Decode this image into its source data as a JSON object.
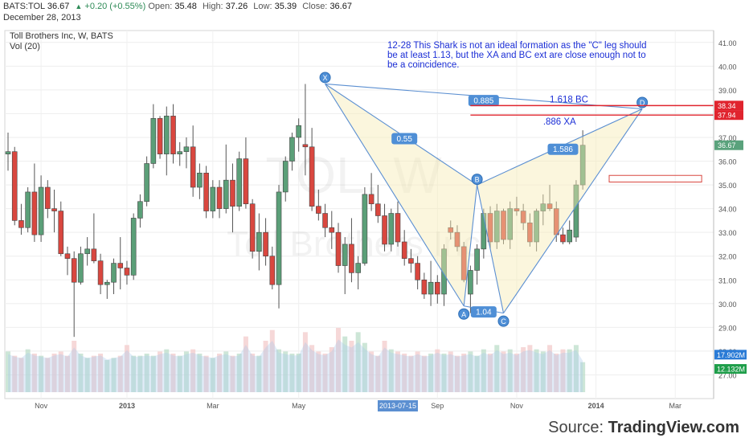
{
  "header": {
    "symbol": "BATS:TOL",
    "last": "36.67",
    "change": "+0.20 (+0.55%)",
    "open_label": "Open:",
    "open": "35.48",
    "high_label": "High:",
    "high": "37.26",
    "low_label": "Low:",
    "low": "35.39",
    "close_label": "Close:",
    "close": "36.67",
    "date": "December 28, 2013"
  },
  "chart_data": {
    "type": "candlestick",
    "title": "Toll Brothers Inc, W, BATS",
    "volume_label": "Vol (20)",
    "watermark_symbol": "TOL, W",
    "watermark_name": "Toll Brothers Inc",
    "annotation": "12-28 This Shark is not an ideal formation as the \"C\" leg should be at least 1.13, but the XA and BC ext are close enough not to be a coincidence.",
    "ylim": [
      26.0,
      41.5
    ],
    "y_ticks": [
      27.0,
      28.0,
      29.0,
      30.0,
      31.0,
      32.0,
      33.0,
      34.0,
      35.0,
      36.0,
      37.0,
      38.0,
      39.0,
      40.0,
      41.0
    ],
    "x_tick_labels": [
      "Nov",
      "2013",
      "Mar",
      "May",
      "Sep",
      "Nov",
      "2014",
      "Mar"
    ],
    "x_tick_weeks": [
      5,
      18,
      31,
      44,
      65,
      77,
      89,
      101
    ],
    "highlight_date": "2013-07-15",
    "highlight_week": 59,
    "price_labels": [
      {
        "text": "38.34",
        "value": 38.34,
        "color": "#e0242e"
      },
      {
        "text": "37.94",
        "value": 37.94,
        "color": "#e0242e"
      },
      {
        "text": "36.67",
        "value": 36.67,
        "color": "#5aa27c"
      }
    ],
    "volume_labels": [
      {
        "text": "17.902M",
        "value": 17.902,
        "color": "#2a7bd6"
      },
      {
        "text": "12.132M",
        "value": 12.132,
        "color": "#1e9e4a"
      }
    ],
    "horizontal_lines": [
      {
        "value": 38.34,
        "label": "1.618 BC",
        "color": "#e0242e"
      },
      {
        "value": 37.94,
        "label": ".886 XA",
        "color": "#e0242e"
      }
    ],
    "box": {
      "start_week": 91,
      "end_week": 105,
      "top": 35.4,
      "bottom": 35.12
    },
    "pattern": {
      "points": [
        {
          "label": "X",
          "week": 48,
          "price": 39.25
        },
        {
          "label": "A",
          "week": 69,
          "price": 29.9
        },
        {
          "label": "B",
          "week": 71,
          "price": 35.0
        },
        {
          "label": "C",
          "week": 75,
          "price": 29.6
        },
        {
          "label": "D",
          "week": 96,
          "price": 38.2
        }
      ],
      "ratio_labels": [
        {
          "text": "0.885",
          "week": 72,
          "price": 38.55
        },
        {
          "text": "0.55",
          "week": 60,
          "price": 36.95
        },
        {
          "text": "1.04",
          "week": 72,
          "price": 29.65
        },
        {
          "text": "1.586",
          "week": 84,
          "price": 36.5
        }
      ]
    },
    "candles": [
      {
        "o": 36.3,
        "h": 37.2,
        "l": 35.6,
        "c": 36.4
      },
      {
        "o": 36.4,
        "h": 36.6,
        "l": 33.3,
        "c": 33.5
      },
      {
        "o": 33.5,
        "h": 34.2,
        "l": 32.9,
        "c": 33.2
      },
      {
        "o": 33.2,
        "h": 34.9,
        "l": 33.0,
        "c": 34.7
      },
      {
        "o": 34.7,
        "h": 35.9,
        "l": 32.6,
        "c": 32.9
      },
      {
        "o": 32.9,
        "h": 35.4,
        "l": 32.6,
        "c": 34.9
      },
      {
        "o": 34.9,
        "h": 35.2,
        "l": 33.6,
        "c": 34.0
      },
      {
        "o": 34.0,
        "h": 34.8,
        "l": 33.0,
        "c": 33.9
      },
      {
        "o": 33.9,
        "h": 34.3,
        "l": 32.0,
        "c": 32.1
      },
      {
        "o": 32.1,
        "h": 32.4,
        "l": 31.2,
        "c": 31.9
      },
      {
        "o": 31.9,
        "h": 32.2,
        "l": 28.6,
        "c": 30.9
      },
      {
        "o": 30.9,
        "h": 32.4,
        "l": 30.8,
        "c": 32.1
      },
      {
        "o": 32.1,
        "h": 32.8,
        "l": 31.6,
        "c": 32.3
      },
      {
        "o": 32.3,
        "h": 33.8,
        "l": 31.7,
        "c": 31.8
      },
      {
        "o": 31.8,
        "h": 32.1,
        "l": 30.4,
        "c": 30.8
      },
      {
        "o": 30.8,
        "h": 31.0,
        "l": 30.2,
        "c": 30.9
      },
      {
        "o": 30.9,
        "h": 31.9,
        "l": 30.4,
        "c": 31.7
      },
      {
        "o": 31.7,
        "h": 32.8,
        "l": 30.6,
        "c": 31.5
      },
      {
        "o": 31.5,
        "h": 31.8,
        "l": 30.8,
        "c": 31.2
      },
      {
        "o": 31.2,
        "h": 33.8,
        "l": 31.0,
        "c": 33.6
      },
      {
        "o": 33.6,
        "h": 34.6,
        "l": 33.2,
        "c": 34.3
      },
      {
        "o": 34.3,
        "h": 36.2,
        "l": 34.1,
        "c": 35.9
      },
      {
        "o": 35.9,
        "h": 38.4,
        "l": 35.7,
        "c": 37.8
      },
      {
        "o": 37.8,
        "h": 37.9,
        "l": 36.1,
        "c": 36.3
      },
      {
        "o": 36.3,
        "h": 38.3,
        "l": 35.4,
        "c": 37.9
      },
      {
        "o": 37.9,
        "h": 38.4,
        "l": 35.9,
        "c": 36.3
      },
      {
        "o": 36.3,
        "h": 36.8,
        "l": 35.8,
        "c": 36.4
      },
      {
        "o": 36.4,
        "h": 37.0,
        "l": 35.7,
        "c": 36.6
      },
      {
        "o": 36.6,
        "h": 37.5,
        "l": 34.5,
        "c": 34.9
      },
      {
        "o": 34.9,
        "h": 35.9,
        "l": 34.4,
        "c": 35.5
      },
      {
        "o": 35.5,
        "h": 35.8,
        "l": 33.6,
        "c": 33.9
      },
      {
        "o": 33.9,
        "h": 35.2,
        "l": 33.6,
        "c": 34.9
      },
      {
        "o": 34.9,
        "h": 35.2,
        "l": 33.6,
        "c": 34.0
      },
      {
        "o": 34.0,
        "h": 36.7,
        "l": 33.8,
        "c": 35.2
      },
      {
        "o": 35.2,
        "h": 35.9,
        "l": 33.0,
        "c": 34.1
      },
      {
        "o": 34.1,
        "h": 36.4,
        "l": 33.9,
        "c": 36.1
      },
      {
        "o": 36.1,
        "h": 37.0,
        "l": 34.0,
        "c": 34.2
      },
      {
        "o": 34.2,
        "h": 34.4,
        "l": 31.9,
        "c": 32.2
      },
      {
        "o": 32.2,
        "h": 33.8,
        "l": 31.4,
        "c": 33.0
      },
      {
        "o": 33.0,
        "h": 33.6,
        "l": 31.6,
        "c": 32.0
      },
      {
        "o": 32.0,
        "h": 32.4,
        "l": 30.6,
        "c": 30.8
      },
      {
        "o": 30.8,
        "h": 35.0,
        "l": 29.8,
        "c": 34.7
      },
      {
        "o": 34.7,
        "h": 36.2,
        "l": 34.3,
        "c": 36.0
      },
      {
        "o": 36.0,
        "h": 37.2,
        "l": 35.6,
        "c": 37.0
      },
      {
        "o": 37.0,
        "h": 37.8,
        "l": 36.4,
        "c": 37.5
      },
      {
        "o": 36.7,
        "h": 39.25,
        "l": 35.4,
        "c": 36.6
      },
      {
        "o": 36.6,
        "h": 37.4,
        "l": 33.9,
        "c": 34.1
      },
      {
        "o": 34.1,
        "h": 34.8,
        "l": 33.5,
        "c": 33.8
      },
      {
        "o": 33.8,
        "h": 34.2,
        "l": 32.8,
        "c": 33.2
      },
      {
        "o": 33.2,
        "h": 33.9,
        "l": 32.3,
        "c": 33.0
      },
      {
        "o": 33.0,
        "h": 33.4,
        "l": 31.3,
        "c": 31.6
      },
      {
        "o": 31.6,
        "h": 32.8,
        "l": 30.4,
        "c": 32.5
      },
      {
        "o": 32.5,
        "h": 33.6,
        "l": 30.9,
        "c": 31.3
      },
      {
        "o": 31.3,
        "h": 32.0,
        "l": 30.6,
        "c": 31.7
      },
      {
        "o": 31.7,
        "h": 34.9,
        "l": 31.6,
        "c": 34.6
      },
      {
        "o": 34.6,
        "h": 35.5,
        "l": 33.9,
        "c": 34.2
      },
      {
        "o": 34.2,
        "h": 35.0,
        "l": 33.4,
        "c": 33.7
      },
      {
        "o": 33.7,
        "h": 34.2,
        "l": 32.2,
        "c": 32.5
      },
      {
        "o": 32.5,
        "h": 34.0,
        "l": 32.2,
        "c": 33.8
      },
      {
        "o": 33.8,
        "h": 34.3,
        "l": 32.4,
        "c": 32.6
      },
      {
        "o": 32.6,
        "h": 33.1,
        "l": 31.6,
        "c": 31.9
      },
      {
        "o": 31.9,
        "h": 32.3,
        "l": 31.3,
        "c": 31.7
      },
      {
        "o": 31.7,
        "h": 32.0,
        "l": 30.6,
        "c": 31.0
      },
      {
        "o": 31.0,
        "h": 31.3,
        "l": 30.2,
        "c": 30.4
      },
      {
        "o": 30.4,
        "h": 31.8,
        "l": 29.9,
        "c": 30.9
      },
      {
        "o": 30.9,
        "h": 31.2,
        "l": 30.0,
        "c": 30.4
      },
      {
        "o": 30.4,
        "h": 32.5,
        "l": 29.9,
        "c": 32.3
      },
      {
        "o": 33.2,
        "h": 33.5,
        "l": 32.7,
        "c": 33.0
      },
      {
        "o": 33.0,
        "h": 33.3,
        "l": 32.2,
        "c": 32.4
      },
      {
        "o": 32.4,
        "h": 32.6,
        "l": 30.9,
        "c": 31.0
      },
      {
        "o": 30.4,
        "h": 31.6,
        "l": 29.6,
        "c": 31.4
      },
      {
        "o": 31.4,
        "h": 32.5,
        "l": 30.8,
        "c": 32.3
      },
      {
        "o": 32.3,
        "h": 34.0,
        "l": 31.9,
        "c": 33.8
      },
      {
        "o": 33.8,
        "h": 34.1,
        "l": 32.3,
        "c": 32.6
      },
      {
        "o": 32.6,
        "h": 34.2,
        "l": 32.3,
        "c": 33.9
      },
      {
        "o": 33.9,
        "h": 34.0,
        "l": 32.5,
        "c": 32.7
      },
      {
        "o": 32.7,
        "h": 34.3,
        "l": 32.3,
        "c": 34.0
      },
      {
        "o": 34.0,
        "h": 34.5,
        "l": 33.7,
        "c": 33.9
      },
      {
        "o": 33.9,
        "h": 34.2,
        "l": 33.1,
        "c": 33.4
      },
      {
        "o": 33.4,
        "h": 33.8,
        "l": 32.4,
        "c": 32.6
      },
      {
        "o": 32.6,
        "h": 34.0,
        "l": 32.2,
        "c": 33.9
      },
      {
        "o": 33.9,
        "h": 34.6,
        "l": 33.3,
        "c": 34.2
      },
      {
        "o": 34.2,
        "h": 35.0,
        "l": 33.9,
        "c": 34.0
      },
      {
        "o": 34.0,
        "h": 34.3,
        "l": 32.6,
        "c": 32.9
      },
      {
        "o": 32.9,
        "h": 33.2,
        "l": 32.5,
        "c": 32.6
      },
      {
        "o": 32.6,
        "h": 33.5,
        "l": 32.5,
        "c": 33.1
      },
      {
        "o": 32.8,
        "h": 35.2,
        "l": 32.6,
        "c": 35.0
      },
      {
        "o": 35.0,
        "h": 37.3,
        "l": 34.8,
        "c": 36.67
      }
    ],
    "volumes": [
      19,
      17,
      16,
      20,
      18,
      17,
      16,
      18,
      19,
      17,
      24,
      18,
      16,
      17,
      18,
      15,
      16,
      17,
      22,
      17,
      17,
      18,
      17,
      19,
      20,
      18,
      17,
      19,
      20,
      18,
      17,
      16,
      18,
      19,
      17,
      18,
      26,
      18,
      17,
      24,
      29,
      20,
      19,
      18,
      18,
      28,
      22,
      19,
      18,
      21,
      30,
      26,
      24,
      28,
      23,
      19,
      17,
      24,
      20,
      19,
      18,
      17,
      19,
      17,
      18,
      20,
      18,
      19,
      17,
      18,
      19,
      17,
      20,
      18,
      22,
      19,
      20,
      18,
      21,
      22,
      20,
      19,
      22,
      18,
      20,
      20,
      22,
      14
    ]
  },
  "source": {
    "prefix": "Source: ",
    "brand": "TradingView.com"
  }
}
